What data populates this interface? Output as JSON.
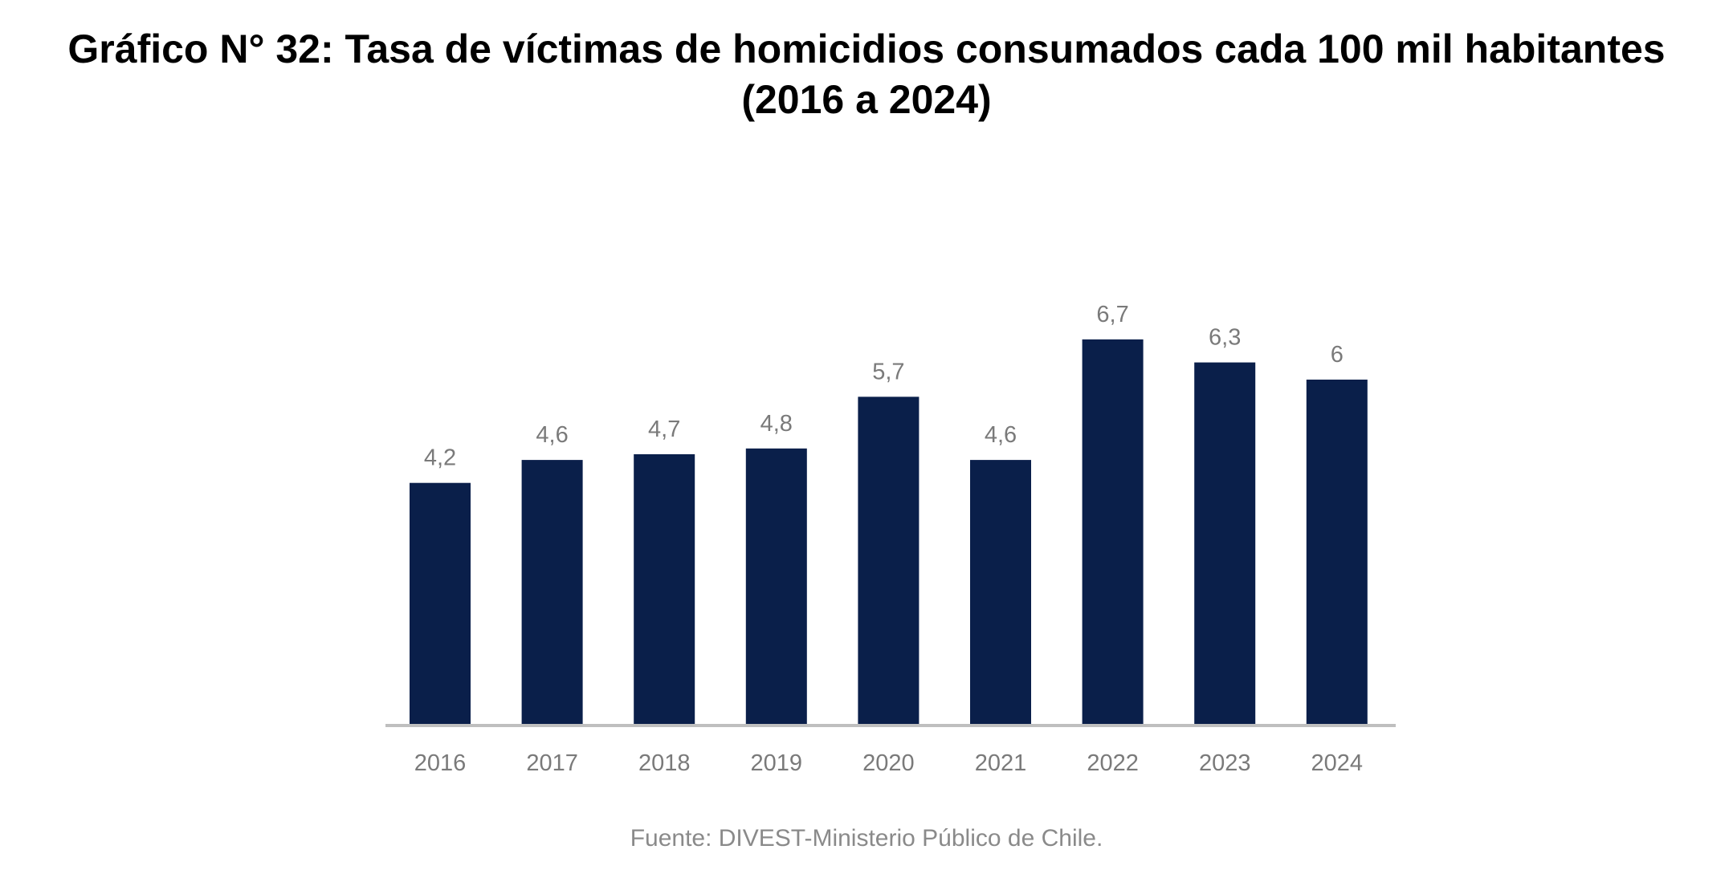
{
  "title": {
    "line1": "Gráfico N° 32: Tasa de víctimas de homicidios consumados cada 100 mil habitantes",
    "line2": "(2016 a 2024)"
  },
  "source": "Fuente: DIVEST-Ministerio Público de Chile.",
  "colors": {
    "bar": "#0a1f4a",
    "axis": "#bfbfbf",
    "label": "#7a7a7a",
    "title": "#000000"
  },
  "chart_data": {
    "type": "bar",
    "title": "Gráfico N° 32: Tasa de víctimas de homicidios consumados cada 100 mil habitantes (2016 a 2024)",
    "xlabel": "",
    "ylabel": "",
    "categories": [
      "2016",
      "2017",
      "2018",
      "2019",
      "2020",
      "2021",
      "2022",
      "2023",
      "2024"
    ],
    "values": [
      4.2,
      4.6,
      4.7,
      4.8,
      5.7,
      4.6,
      6.7,
      6.3,
      6
    ],
    "data_labels": [
      "4,2",
      "4,6",
      "4,7",
      "4,8",
      "5,7",
      "4,6",
      "6,7",
      "6,3",
      "6"
    ],
    "ylim": [
      0,
      7
    ],
    "grid": false,
    "legend": "none"
  }
}
